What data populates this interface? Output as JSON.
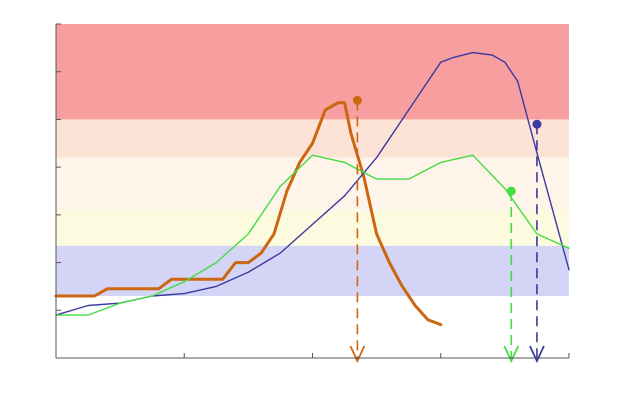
{
  "chart_data": {
    "type": "line",
    "title": "",
    "xlabel": "",
    "ylabel": "",
    "grid": false,
    "legend": "none",
    "xlim": [
      0,
      40
    ],
    "ylim": [
      0,
      7
    ],
    "x_ticks": [
      0,
      10,
      20,
      30,
      40
    ],
    "y_ticks": [
      0,
      1,
      2,
      3,
      4,
      5,
      6,
      7
    ],
    "bands": [
      {
        "name": "red",
        "y0": 5.0,
        "y1": 7.0,
        "color": "#f79e9e"
      },
      {
        "name": "peach",
        "y0": 4.2,
        "y1": 5.0,
        "color": "#fde3d6"
      },
      {
        "name": "cream",
        "y0": 3.1,
        "y1": 4.2,
        "color": "#fff4ea"
      },
      {
        "name": "yellow",
        "y0": 2.35,
        "y1": 3.1,
        "color": "#fdfbdf"
      },
      {
        "name": "blue",
        "y0": 1.3,
        "y1": 2.35,
        "color": "#d3d4f6"
      }
    ],
    "series": [
      {
        "color": "#cc6611",
        "x": [
          0,
          1,
          2,
          3,
          4,
          5,
          6,
          7,
          8,
          9,
          10,
          11,
          12,
          13,
          14,
          15,
          16,
          17,
          18,
          18.5,
          19,
          20,
          21,
          22,
          22.5,
          23,
          24,
          25,
          26,
          27,
          28,
          29,
          30
        ],
        "y": [
          1.3,
          1.3,
          1.3,
          1.3,
          1.45,
          1.45,
          1.45,
          1.45,
          1.45,
          1.65,
          1.65,
          1.65,
          1.65,
          1.65,
          2.0,
          2.0,
          2.2,
          2.6,
          3.5,
          3.8,
          4.1,
          4.5,
          5.2,
          5.35,
          5.35,
          4.7,
          3.8,
          2.6,
          2.0,
          1.5,
          1.1,
          0.8,
          0.7
        ],
        "marker": {
          "x": 23.5,
          "y": 5.4
        },
        "arrow_x": 23.5
      },
      {
        "color": "#3a3aa0",
        "x": [
          0,
          2.5,
          5,
          7.5,
          10,
          12.5,
          15,
          17.5,
          20,
          22.5,
          25,
          27.5,
          30,
          31,
          32.5,
          34,
          35,
          36,
          37.5,
          40
        ],
        "y": [
          0.9,
          1.1,
          1.15,
          1.3,
          1.35,
          1.5,
          1.8,
          2.2,
          2.8,
          3.4,
          4.2,
          5.2,
          6.2,
          6.3,
          6.4,
          6.35,
          6.2,
          5.8,
          4.3,
          1.85
        ],
        "marker": {
          "x": 37.5,
          "y": 4.9
        },
        "arrow_x": 37.5
      },
      {
        "color": "#44dd44",
        "x": [
          0,
          2.5,
          5,
          7.5,
          10,
          12.5,
          15,
          17.5,
          20,
          22.5,
          25,
          27.5,
          30,
          32.5,
          35,
          37.5,
          40
        ],
        "y": [
          0.9,
          0.9,
          1.15,
          1.3,
          1.6,
          2.0,
          2.6,
          3.6,
          4.25,
          4.1,
          3.75,
          3.75,
          4.1,
          4.25,
          3.55,
          2.6,
          2.3
        ],
        "marker": {
          "x": 35.5,
          "y": 3.5
        },
        "arrow_x": 35.5
      }
    ]
  }
}
